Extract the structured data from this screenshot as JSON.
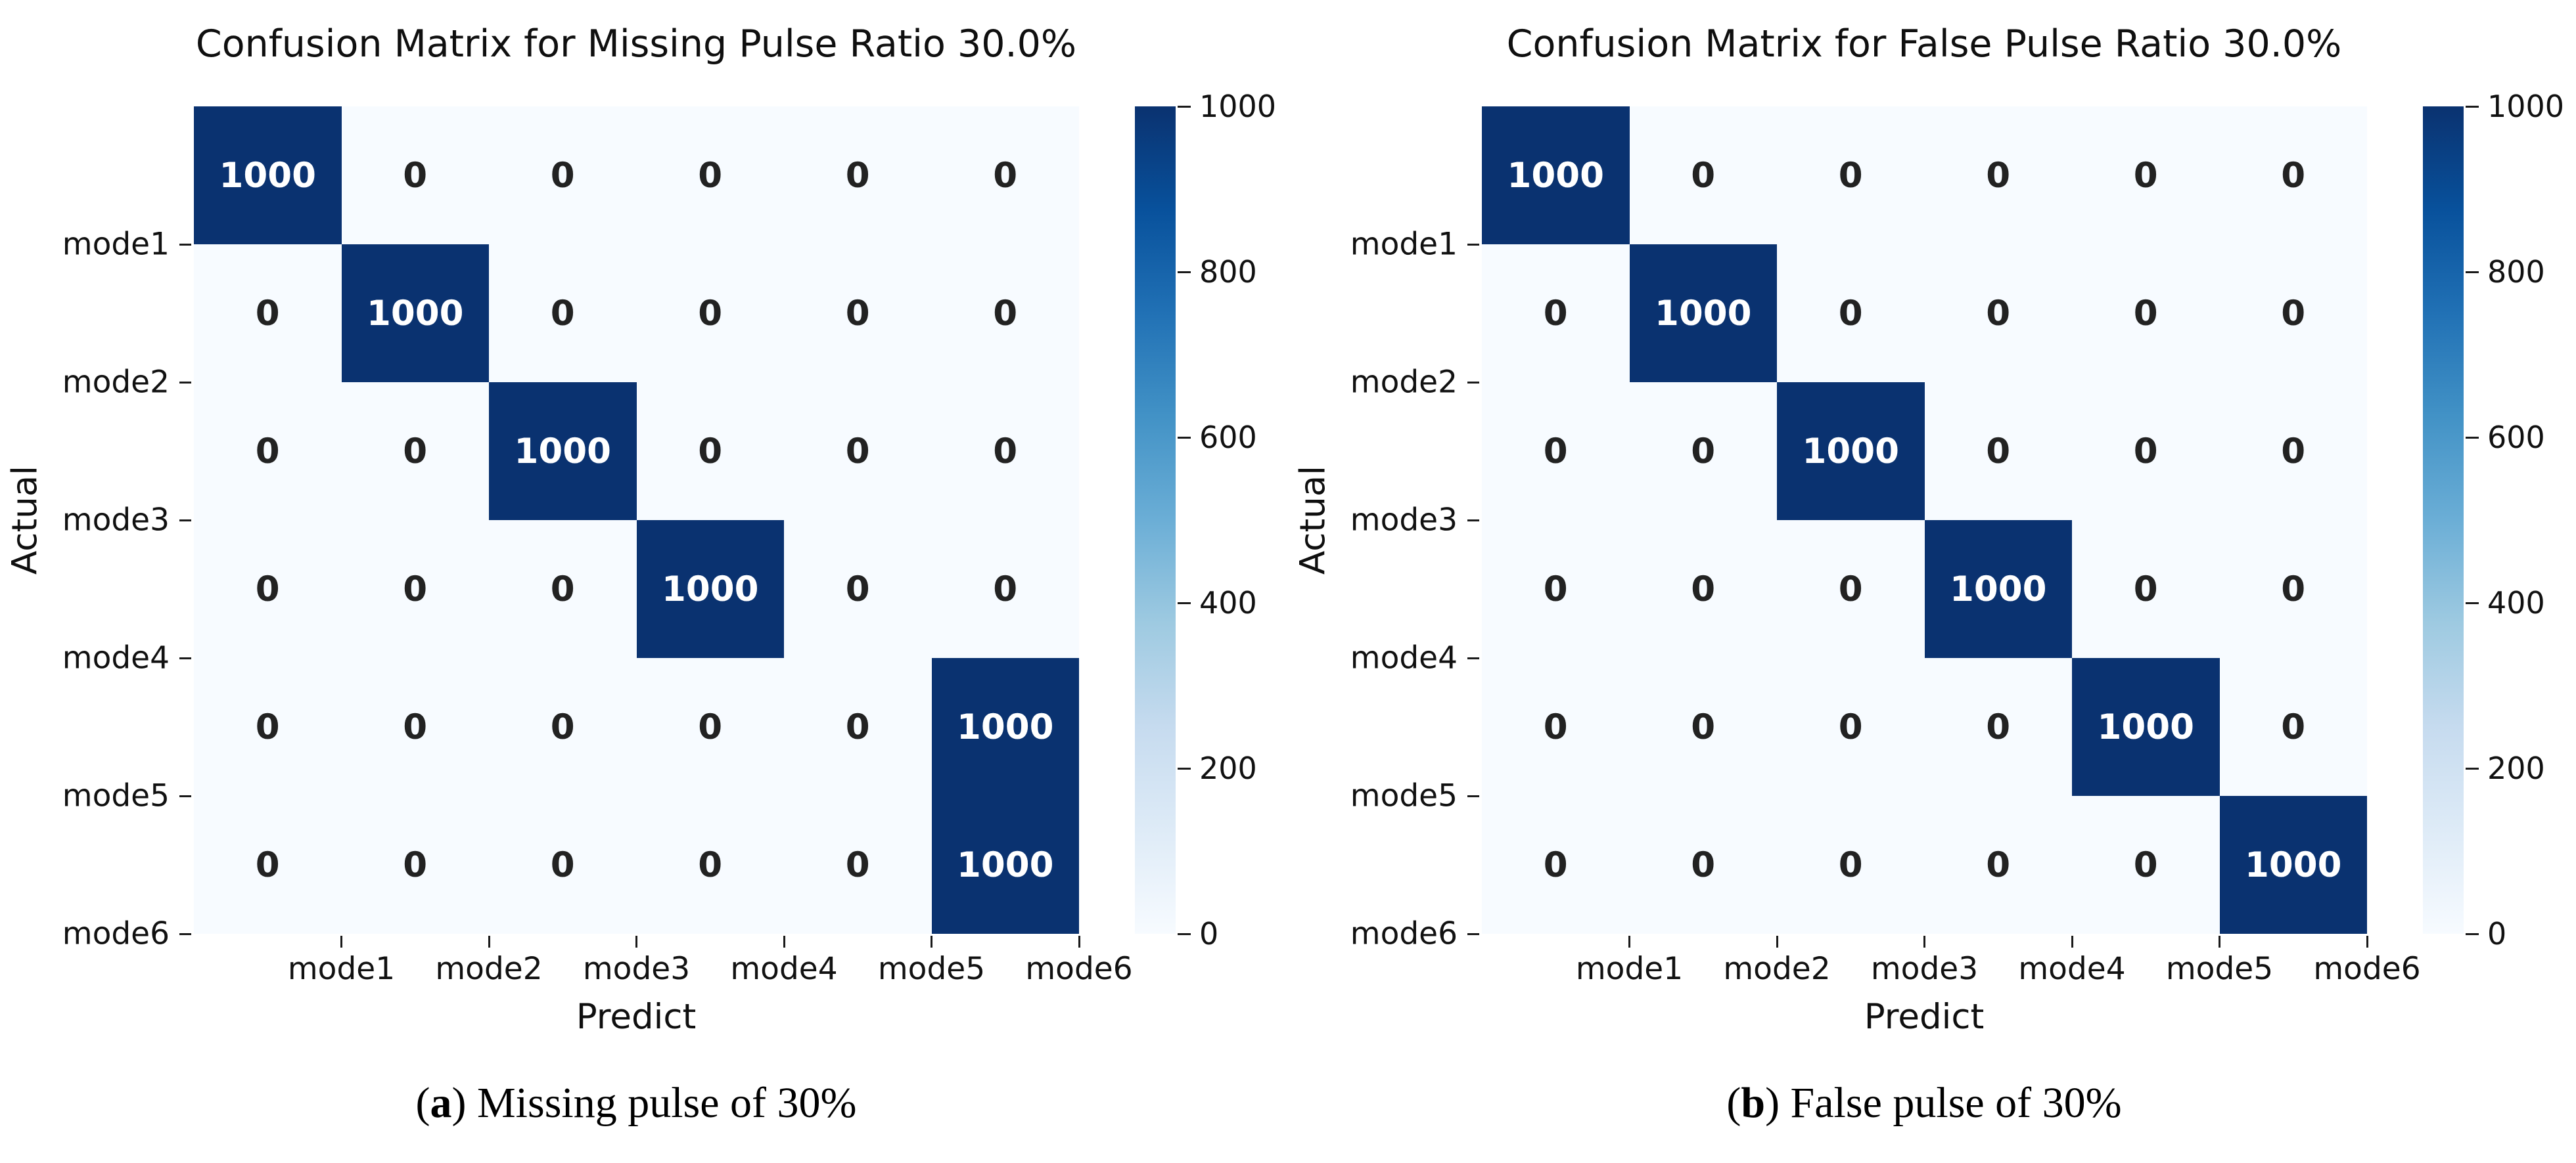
{
  "colors": {
    "cell_high": "#0a3270",
    "cell_low": "#f7fbff",
    "text_on_high": "#ffffff",
    "text_on_low": "#222222",
    "tick": "#1a1a1a",
    "colorbar_stops": [
      "#f7fbff",
      "#deebf7",
      "#c6dbef",
      "#9ecae1",
      "#6baed6",
      "#4292c6",
      "#2171b5",
      "#08519c",
      "#0a3270"
    ]
  },
  "chart_data": [
    {
      "type": "heatmap",
      "title": "Confusion Matrix for Missing Pulse Ratio 30.0%",
      "xlabel": "Predict",
      "ylabel": "Actual",
      "x_categories": [
        "mode1",
        "mode2",
        "mode3",
        "mode4",
        "mode5",
        "mode6"
      ],
      "y_categories": [
        "mode1",
        "mode2",
        "mode3",
        "mode4",
        "mode5",
        "mode6"
      ],
      "matrix": [
        [
          1000,
          0,
          0,
          0,
          0,
          0
        ],
        [
          0,
          1000,
          0,
          0,
          0,
          0
        ],
        [
          0,
          0,
          1000,
          0,
          0,
          0
        ],
        [
          0,
          0,
          0,
          1000,
          0,
          0
        ],
        [
          0,
          0,
          0,
          0,
          0,
          1000
        ],
        [
          0,
          0,
          0,
          0,
          0,
          1000
        ]
      ],
      "vmin": 0,
      "vmax": 1000,
      "colorbar_ticks": [
        0,
        200,
        400,
        600,
        800,
        1000
      ],
      "caption": {
        "open": "(",
        "letter": "a",
        "close": ")",
        "text": " Missing pulse of 30%"
      }
    },
    {
      "type": "heatmap",
      "title": "Confusion Matrix for False Pulse Ratio 30.0%",
      "xlabel": "Predict",
      "ylabel": "Actual",
      "x_categories": [
        "mode1",
        "mode2",
        "mode3",
        "mode4",
        "mode5",
        "mode6"
      ],
      "y_categories": [
        "mode1",
        "mode2",
        "mode3",
        "mode4",
        "mode5",
        "mode6"
      ],
      "matrix": [
        [
          1000,
          0,
          0,
          0,
          0,
          0
        ],
        [
          0,
          1000,
          0,
          0,
          0,
          0
        ],
        [
          0,
          0,
          1000,
          0,
          0,
          0
        ],
        [
          0,
          0,
          0,
          1000,
          0,
          0
        ],
        [
          0,
          0,
          0,
          0,
          1000,
          0
        ],
        [
          0,
          0,
          0,
          0,
          0,
          1000
        ]
      ],
      "vmin": 0,
      "vmax": 1000,
      "colorbar_ticks": [
        0,
        200,
        400,
        600,
        800,
        1000
      ],
      "caption": {
        "open": "(",
        "letter": "b",
        "close": ")",
        "text": " False pulse of 30%"
      }
    }
  ]
}
